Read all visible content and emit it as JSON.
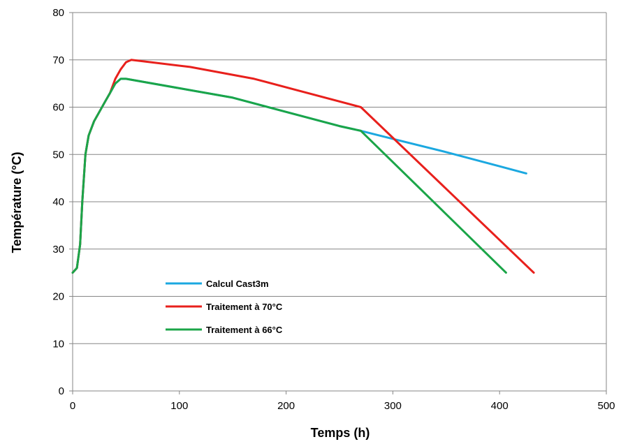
{
  "chart_data": {
    "type": "line",
    "xlabel": "Temps (h)",
    "ylabel": "Température (°C)",
    "xlim": [
      0,
      500
    ],
    "ylim": [
      0,
      80
    ],
    "xticks": [
      0,
      100,
      200,
      300,
      400,
      500
    ],
    "yticks": [
      0,
      10,
      20,
      30,
      40,
      50,
      60,
      70,
      80
    ],
    "grid": "horizontal",
    "legend_position": "center-left",
    "series": [
      {
        "name": "Calcul Cast3m",
        "color": "#1ba8e0",
        "points": [
          [
            0,
            25
          ],
          [
            4,
            26
          ],
          [
            7,
            31
          ],
          [
            9,
            40
          ],
          [
            12,
            50
          ],
          [
            15,
            54
          ],
          [
            20,
            57
          ],
          [
            25,
            59
          ],
          [
            30,
            61
          ],
          [
            35,
            63
          ],
          [
            40,
            65
          ],
          [
            45,
            66
          ],
          [
            50,
            66
          ],
          [
            100,
            64
          ],
          [
            150,
            62
          ],
          [
            200,
            59
          ],
          [
            250,
            56
          ],
          [
            270,
            55
          ],
          [
            300,
            53.3
          ],
          [
            350,
            50.5
          ],
          [
            400,
            47.5
          ],
          [
            425,
            46
          ]
        ]
      },
      {
        "name": "Traitement à 70°C",
        "color": "#e8201c",
        "points": [
          [
            0,
            25
          ],
          [
            4,
            26
          ],
          [
            7,
            31
          ],
          [
            9,
            40
          ],
          [
            12,
            50
          ],
          [
            15,
            54
          ],
          [
            20,
            57
          ],
          [
            25,
            59
          ],
          [
            30,
            61
          ],
          [
            35,
            63
          ],
          [
            40,
            66
          ],
          [
            45,
            68
          ],
          [
            50,
            69.5
          ],
          [
            55,
            70
          ],
          [
            110,
            68.5
          ],
          [
            170,
            66
          ],
          [
            270,
            60
          ],
          [
            432,
            25
          ]
        ]
      },
      {
        "name": "Traitement à 66°C",
        "color": "#1ba548",
        "points": [
          [
            0,
            25
          ],
          [
            4,
            26
          ],
          [
            7,
            31
          ],
          [
            9,
            40
          ],
          [
            12,
            50
          ],
          [
            15,
            54
          ],
          [
            20,
            57
          ],
          [
            25,
            59
          ],
          [
            30,
            61
          ],
          [
            35,
            63
          ],
          [
            40,
            65
          ],
          [
            45,
            66
          ],
          [
            50,
            66
          ],
          [
            100,
            64
          ],
          [
            150,
            62
          ],
          [
            200,
            59
          ],
          [
            250,
            56
          ],
          [
            270,
            55
          ],
          [
            406,
            25
          ]
        ]
      }
    ]
  }
}
